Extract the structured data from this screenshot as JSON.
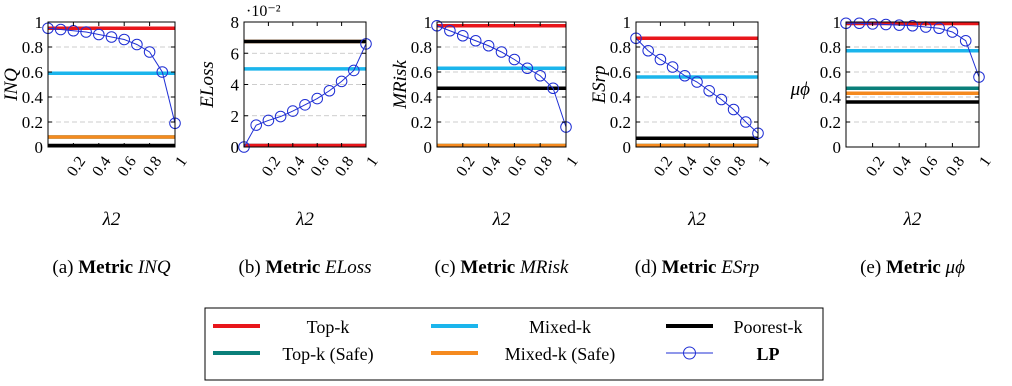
{
  "figure": {
    "legend": {
      "entries": [
        {
          "series": "Top-k",
          "label": "Top-k"
        },
        {
          "series": "Mixed-k",
          "label": "Mixed-k"
        },
        {
          "series": "Poorest-k",
          "label": "Poorest-k"
        },
        {
          "series": "Top-k (Safe)",
          "label": "Top-k (Safe)"
        },
        {
          "series": "Mixed-k (Safe)",
          "label": "Mixed-k (Safe)"
        },
        {
          "series": "LP",
          "label": "LP"
        }
      ]
    },
    "colors": {
      "Top-k": "#e8161b",
      "Mixed-k": "#1bb5ec",
      "Poorest-k": "#000000",
      "Top-k (Safe)": "#0a7f7a",
      "Mixed-k (Safe)": "#f58a1f",
      "LP": "#1f2fd4",
      "grid": "#bdbdbd"
    }
  },
  "chart_data": [
    {
      "type": "line",
      "caption": "(a) Metric INQ",
      "caption_tag": "(a)",
      "caption_bold": "Metric",
      "caption_metric": "INQ",
      "xlabel": "λ2",
      "ylabel": "INQ",
      "ylim": [
        0,
        1
      ],
      "yticks": [
        0,
        0.2,
        0.4,
        0.6,
        0.8,
        1
      ],
      "ytick_labels": [
        "0",
        "0.2",
        "0.4",
        "0.6",
        "0.8",
        "1"
      ],
      "exponent_label": "",
      "xlim": [
        0,
        1
      ],
      "xticks": [
        0.2,
        0.4,
        0.6,
        0.8,
        1
      ],
      "xtick_labels": [
        "0.2",
        "0.4",
        "0.6",
        "0.8",
        "1"
      ],
      "grid": "horizontal dashed",
      "series": [
        {
          "name": "Top-k",
          "value": 0.95
        },
        {
          "name": "Mixed-k",
          "value": 0.59
        },
        {
          "name": "Poorest-k",
          "value": 0.0
        },
        {
          "name": "Top-k (Safe)",
          "value": 0.08
        },
        {
          "name": "Mixed-k (Safe)",
          "value": 0.08
        },
        {
          "name": "LP",
          "x": [
            0,
            0.1,
            0.2,
            0.3,
            0.4,
            0.5,
            0.6,
            0.7,
            0.8,
            0.9,
            1.0
          ],
          "y": [
            0.95,
            0.94,
            0.93,
            0.92,
            0.9,
            0.88,
            0.86,
            0.82,
            0.76,
            0.6,
            0.19
          ]
        }
      ]
    },
    {
      "type": "line",
      "caption": "(b) Metric ELoss",
      "caption_tag": "(b)",
      "caption_bold": "Metric",
      "caption_metric": "ELoss",
      "xlabel": "λ2",
      "ylabel": "ELoss",
      "ylim": [
        0,
        8
      ],
      "yticks": [
        0,
        2,
        4,
        6,
        8
      ],
      "ytick_labels": [
        "0",
        "2",
        "4",
        "6",
        "8"
      ],
      "exponent_label": "·10⁻²",
      "xlim": [
        0,
        1
      ],
      "xticks": [
        0.2,
        0.4,
        0.6,
        0.8,
        1
      ],
      "xtick_labels": [
        "0.2",
        "0.4",
        "0.6",
        "0.8",
        "1"
      ],
      "grid": "horizontal dashed",
      "series": [
        {
          "name": "Top-k",
          "value": 0.0
        },
        {
          "name": "Mixed-k",
          "value": 5.0
        },
        {
          "name": "Poorest-k",
          "value": 6.75
        },
        {
          "name": "Top-k (Safe)",
          "value": 0.0
        },
        {
          "name": "Mixed-k (Safe)",
          "value": 6.75
        },
        {
          "name": "LP",
          "x": [
            0,
            0.1,
            0.2,
            0.3,
            0.4,
            0.5,
            0.6,
            0.7,
            0.8,
            0.9,
            1.0
          ],
          "y": [
            0.0,
            1.4,
            1.7,
            1.95,
            2.3,
            2.7,
            3.1,
            3.6,
            4.2,
            4.9,
            6.6
          ]
        }
      ]
    },
    {
      "type": "line",
      "caption": "(c) Metric MRisk",
      "caption_tag": "(c)",
      "caption_bold": "Metric",
      "caption_metric": "MRisk",
      "xlabel": "λ2",
      "ylabel": "MRisk",
      "ylim": [
        0,
        1
      ],
      "yticks": [
        0,
        0.2,
        0.4,
        0.6,
        0.8,
        1
      ],
      "ytick_labels": [
        "0",
        "0.2",
        "0.4",
        "0.6",
        "0.8",
        "1"
      ],
      "exponent_label": "",
      "xlim": [
        0,
        1
      ],
      "xticks": [
        0.2,
        0.4,
        0.6,
        0.8,
        1
      ],
      "xtick_labels": [
        "0.2",
        "0.4",
        "0.6",
        "0.8",
        "1"
      ],
      "grid": "horizontal dashed",
      "series": [
        {
          "name": "Top-k",
          "value": 0.97
        },
        {
          "name": "Mixed-k",
          "value": 0.63
        },
        {
          "name": "Poorest-k",
          "value": 0.47
        },
        {
          "name": "Top-k (Safe)",
          "value": 0.0
        },
        {
          "name": "Mixed-k (Safe)",
          "value": 0.0
        },
        {
          "name": "LP",
          "x": [
            0,
            0.1,
            0.2,
            0.3,
            0.4,
            0.5,
            0.6,
            0.7,
            0.8,
            0.9,
            1.0
          ],
          "y": [
            0.97,
            0.93,
            0.89,
            0.85,
            0.81,
            0.76,
            0.7,
            0.63,
            0.57,
            0.47,
            0.16
          ]
        }
      ]
    },
    {
      "type": "line",
      "caption": "(d) Metric ESrp",
      "caption_tag": "(d)",
      "caption_bold": "Metric",
      "caption_metric": "ESrp",
      "xlabel": "λ2",
      "ylabel": "ESrp",
      "ylim": [
        0,
        1
      ],
      "yticks": [
        0,
        0.2,
        0.4,
        0.6,
        0.8,
        1
      ],
      "ytick_labels": [
        "0",
        "0.2",
        "0.4",
        "0.6",
        "0.8",
        "1"
      ],
      "exponent_label": "",
      "xlim": [
        0,
        1
      ],
      "xticks": [
        0.2,
        0.4,
        0.6,
        0.8,
        1
      ],
      "xtick_labels": [
        "0.2",
        "0.4",
        "0.6",
        "0.8",
        "1"
      ],
      "grid": "horizontal dashed",
      "series": [
        {
          "name": "Top-k",
          "value": 0.87
        },
        {
          "name": "Mixed-k",
          "value": 0.56
        },
        {
          "name": "Poorest-k",
          "value": 0.07
        },
        {
          "name": "Top-k (Safe)",
          "value": 0.0
        },
        {
          "name": "Mixed-k (Safe)",
          "value": 0.0
        },
        {
          "name": "LP",
          "x": [
            0,
            0.1,
            0.2,
            0.3,
            0.4,
            0.5,
            0.6,
            0.7,
            0.8,
            0.9,
            1.0
          ],
          "y": [
            0.87,
            0.77,
            0.7,
            0.64,
            0.57,
            0.52,
            0.45,
            0.38,
            0.3,
            0.2,
            0.11
          ]
        }
      ]
    },
    {
      "type": "line",
      "caption": "(e) Metric μϕ",
      "caption_tag": "(e)",
      "caption_bold": "Metric",
      "caption_metric": "μϕ",
      "xlabel": "λ2",
      "ylabel": "μϕ",
      "ylim": [
        0,
        1
      ],
      "yticks": [
        0,
        0.2,
        0.4,
        0.6,
        0.8,
        1
      ],
      "ytick_labels": [
        "0",
        "0.2",
        "0.4",
        "0.6",
        "0.8",
        "1"
      ],
      "exponent_label": "",
      "xlim": [
        0,
        1
      ],
      "xticks": [
        0.2,
        0.4,
        0.6,
        0.8,
        1
      ],
      "xtick_labels": [
        "0.2",
        "0.4",
        "0.6",
        "0.8",
        "1"
      ],
      "grid": "horizontal dashed",
      "series": [
        {
          "name": "Top-k",
          "value": 0.99
        },
        {
          "name": "Mixed-k",
          "value": 0.77
        },
        {
          "name": "Poorest-k",
          "value": 0.36
        },
        {
          "name": "Top-k (Safe)",
          "value": 0.47
        },
        {
          "name": "Mixed-k (Safe)",
          "value": 0.43
        },
        {
          "name": "LP",
          "x": [
            0,
            0.1,
            0.2,
            0.3,
            0.4,
            0.5,
            0.6,
            0.7,
            0.8,
            0.9,
            1.0
          ],
          "y": [
            0.99,
            0.99,
            0.985,
            0.98,
            0.975,
            0.97,
            0.96,
            0.95,
            0.92,
            0.85,
            0.56
          ]
        }
      ]
    }
  ]
}
